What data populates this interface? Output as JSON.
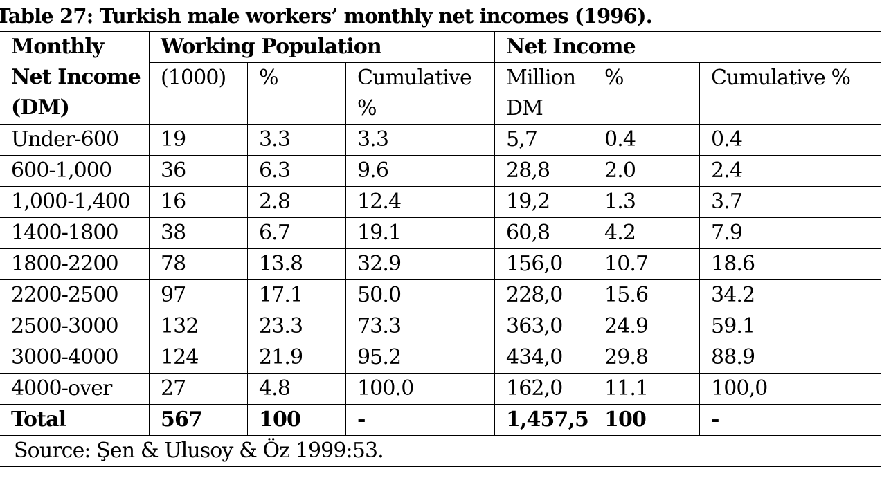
{
  "caption": "Table 27: Turkish male workers’ monthly net incomes (1996).",
  "header": {
    "row_label_line1": "Monthly",
    "row_label_line2": "Net Income",
    "row_label_line3": "(DM)",
    "group1": "Working Population",
    "group2": "Net Income",
    "sub": [
      "(1000)",
      "%",
      "Cumulative %",
      "Million DM",
      "%",
      "Cumulative %"
    ]
  },
  "rows": [
    [
      "Under-600",
      "19",
      "3.3",
      "3.3",
      "5,7",
      "0.4",
      "0.4"
    ],
    [
      "600-1,000",
      "36",
      "6.3",
      "9.6",
      "28,8",
      "2.0",
      "2.4"
    ],
    [
      "1,000-1,400",
      "16",
      "2.8",
      "12.4",
      "19,2",
      "1.3",
      "3.7"
    ],
    [
      "1400-1800",
      "38",
      "6.7",
      "19.1",
      "60,8",
      "4.2",
      "7.9"
    ],
    [
      "1800-2200",
      "78",
      "13.8",
      "32.9",
      "156,0",
      "10.7",
      "18.6"
    ],
    [
      "2200-2500",
      "97",
      "17.1",
      "50.0",
      "228,0",
      "15.6",
      "34.2"
    ],
    [
      "2500-3000",
      "132",
      "23.3",
      "73.3",
      "363,0",
      "24.9",
      "59.1"
    ],
    [
      "3000-4000",
      "124",
      "21.9",
      "95.2",
      "434,0",
      "29.8",
      "88.9"
    ],
    [
      "4000-over",
      "27",
      "4.8",
      "100.0",
      "162,0",
      "11.1",
      "100,0"
    ]
  ],
  "total": [
    "Total",
    "567",
    "100",
    "-",
    "1,457,5",
    "100",
    "-"
  ],
  "source": "Source: Şen & Ulusoy & Öz 1999:53."
}
